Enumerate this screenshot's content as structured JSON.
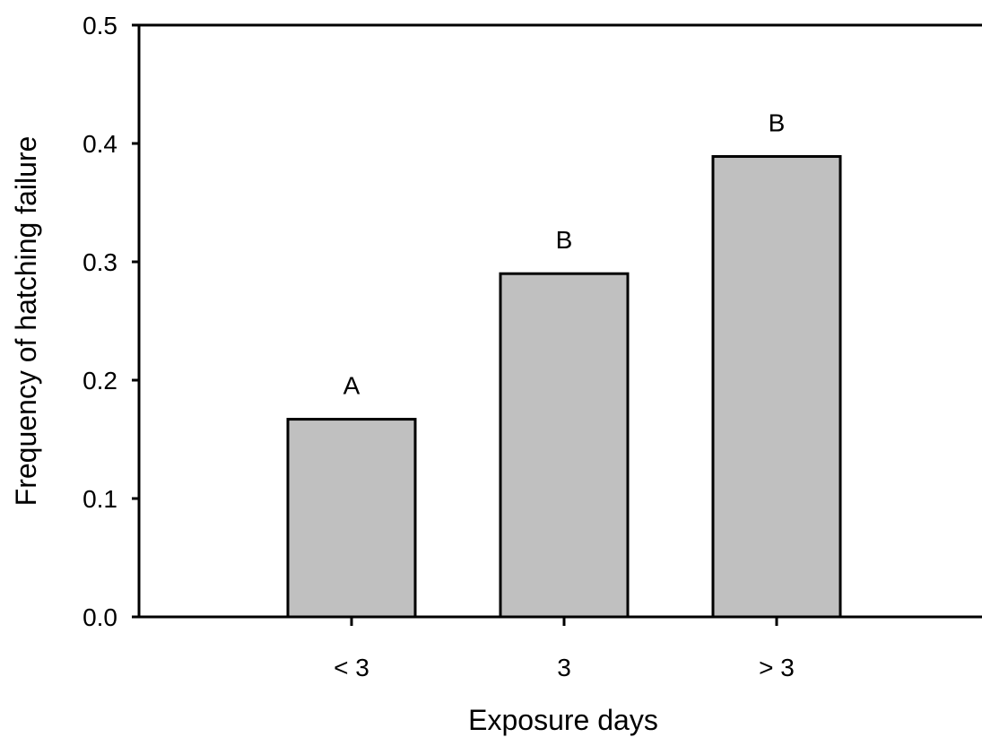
{
  "chart_data": {
    "type": "bar",
    "categories": [
      "< 3",
      "3",
      "> 3"
    ],
    "values": [
      0.167,
      0.29,
      0.389
    ],
    "group_labels": [
      "A",
      "B",
      "B"
    ],
    "xlabel": "Exposure days",
    "ylabel": "Frequency of hatching failure",
    "ylim": [
      0,
      0.5
    ],
    "yticks": [
      "0.0",
      "0.1",
      "0.2",
      "0.3",
      "0.4",
      "0.5"
    ],
    "bar_color": "#c0c0c0",
    "bar_edge_color": "#000000",
    "grid": false,
    "legend": "none"
  }
}
